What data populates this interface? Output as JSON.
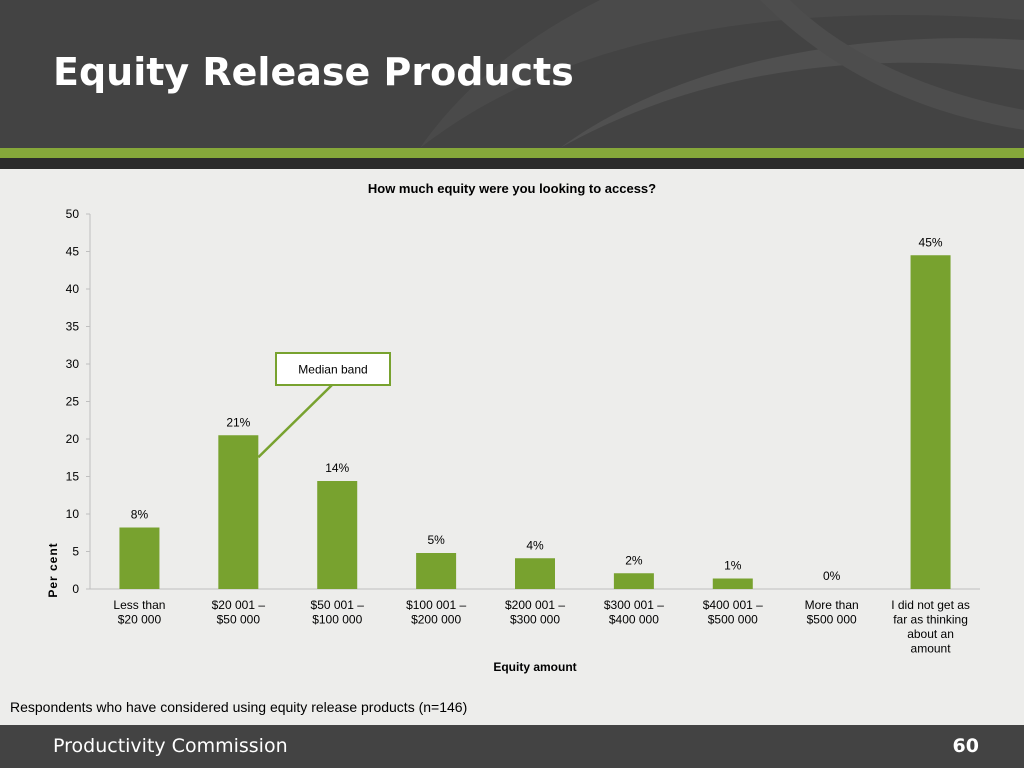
{
  "slide": {
    "title": "Equity Release Products",
    "footnote": "Respondents who have considered using equity release products (n=146)",
    "footer_org": "Productivity Commission",
    "page_number": "60"
  },
  "colors": {
    "bar": "#78a22f",
    "header": "#434343",
    "accent_stripe": "#86a83a"
  },
  "chart_data": {
    "type": "bar",
    "title": "How much equity were you looking to access?",
    "xlabel": "Equity amount",
    "ylabel": "Per cent",
    "ylim": [
      0,
      50
    ],
    "yticks": [
      0,
      5,
      10,
      15,
      20,
      25,
      30,
      35,
      40,
      45,
      50
    ],
    "grid": false,
    "categories": [
      [
        "Less than",
        "$20 000"
      ],
      [
        "$20 001 –",
        "$50 000"
      ],
      [
        "$50 001 –",
        "$100 000"
      ],
      [
        "$100 001 –",
        "$200 000"
      ],
      [
        "$200 001 –",
        "$300 000"
      ],
      [
        "$300 001 –",
        "$400 000"
      ],
      [
        "$400 001 –",
        "$500 000"
      ],
      [
        "More than",
        "$500 000"
      ],
      [
        "I did not get as",
        "far as thinking",
        "about an",
        "amount"
      ]
    ],
    "values": [
      8.2,
      20.5,
      14.4,
      4.8,
      4.1,
      2.1,
      1.4,
      0,
      44.5
    ],
    "data_labels": [
      "8%",
      "21%",
      "14%",
      "5%",
      "4%",
      "2%",
      "1%",
      "0%",
      "45%"
    ],
    "annotation": {
      "text": "Median band",
      "category_index": 1
    }
  }
}
